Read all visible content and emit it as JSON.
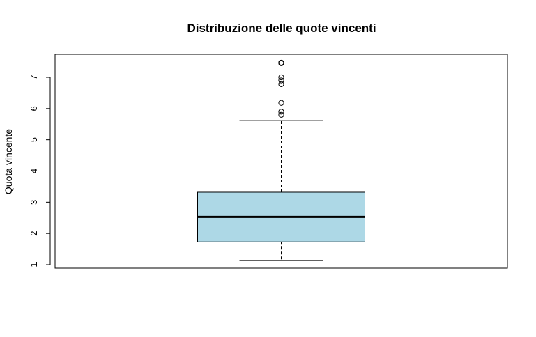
{
  "chart_data": {
    "type": "boxplot",
    "title": "Distribuzione delle quote vincenti",
    "xlabel": "",
    "ylabel": "Quota vincente",
    "ylim": [
      0.9,
      7.75
    ],
    "yticks": [
      1,
      2,
      3,
      4,
      5,
      6,
      7
    ],
    "grid": false,
    "box": {
      "whisker_low": 1.13,
      "q1": 1.73,
      "median": 2.53,
      "q3": 3.32,
      "whisker_high": 5.62,
      "fill": "#add8e6",
      "outliers": [
        5.8,
        5.9,
        6.18,
        6.78,
        6.9,
        7.0,
        7.45,
        7.47
      ]
    }
  }
}
